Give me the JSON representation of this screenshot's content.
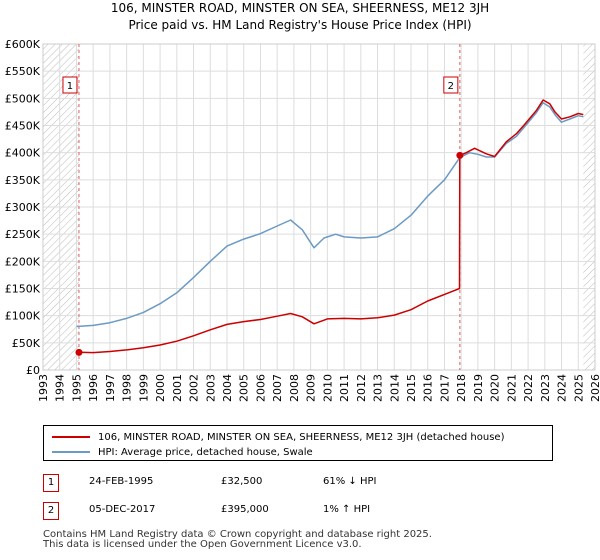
{
  "title_line1": "106, MINSTER ROAD, MINSTER ON SEA, SHEERNESS, ME12 3JH",
  "title_line2": "Price paid vs. HM Land Registry's House Price Index (HPI)",
  "chart_data": {
    "type": "line",
    "title": "106, MINSTER ROAD, MINSTER ON SEA, SHEERNESS, ME12 3JH - Price paid vs. HM Land Registry's House Price Index (HPI)",
    "xlabel": "",
    "ylabel": "",
    "xlim": [
      1993,
      2026
    ],
    "ylim": [
      0,
      600000
    ],
    "x_ticks": [
      1993,
      1994,
      1995,
      1996,
      1997,
      1998,
      1999,
      2000,
      2001,
      2002,
      2003,
      2004,
      2005,
      2006,
      2007,
      2008,
      2009,
      2010,
      2011,
      2012,
      2013,
      2014,
      2015,
      2016,
      2017,
      2018,
      2019,
      2020,
      2021,
      2022,
      2023,
      2024,
      2025,
      2026
    ],
    "y_ticks": [
      0,
      50000,
      100000,
      150000,
      200000,
      250000,
      300000,
      350000,
      400000,
      450000,
      500000,
      550000,
      600000
    ],
    "y_tick_labels": [
      "£0",
      "£50K",
      "£100K",
      "£150K",
      "£200K",
      "£250K",
      "£300K",
      "£350K",
      "£400K",
      "£450K",
      "£500K",
      "£550K",
      "£600K"
    ],
    "grid": true,
    "series": [
      {
        "name": "106, MINSTER ROAD, MINSTER ON SEA, SHEERNESS, ME12 3JH (detached house)",
        "color": "#cc0000",
        "points": [
          [
            1995.15,
            32500
          ],
          [
            1996,
            32000
          ],
          [
            1997,
            34000
          ],
          [
            1998,
            37000
          ],
          [
            1999,
            41000
          ],
          [
            2000,
            46000
          ],
          [
            2001,
            53000
          ],
          [
            2002,
            63000
          ],
          [
            2003,
            74000
          ],
          [
            2004,
            84000
          ],
          [
            2005,
            89000
          ],
          [
            2006,
            93000
          ],
          [
            2007,
            99000
          ],
          [
            2007.8,
            104000
          ],
          [
            2008.5,
            98000
          ],
          [
            2009.2,
            85000
          ],
          [
            2010,
            94000
          ],
          [
            2011,
            95000
          ],
          [
            2012,
            94000
          ],
          [
            2013,
            96000
          ],
          [
            2014,
            101000
          ],
          [
            2015,
            111000
          ],
          [
            2016,
            127000
          ],
          [
            2017.5,
            145000
          ],
          [
            2017.9,
            150000
          ],
          [
            2017.92,
            395000
          ],
          [
            2018.3,
            400000
          ],
          [
            2018.8,
            408000
          ],
          [
            2019.5,
            398000
          ],
          [
            2020,
            393000
          ],
          [
            2020.7,
            420000
          ],
          [
            2021.3,
            435000
          ],
          [
            2021.8,
            452000
          ],
          [
            2022.5,
            478000
          ],
          [
            2022.9,
            497000
          ],
          [
            2023.3,
            490000
          ],
          [
            2023.6,
            475000
          ],
          [
            2024,
            462000
          ],
          [
            2024.5,
            466000
          ],
          [
            2025,
            472000
          ],
          [
            2025.3,
            470000
          ]
        ]
      },
      {
        "name": "HPI: Average price, detached house, Swale",
        "color": "#6b9ac4",
        "points": [
          [
            1995,
            80000
          ],
          [
            1996,
            82000
          ],
          [
            1997,
            87000
          ],
          [
            1998,
            95000
          ],
          [
            1999,
            106000
          ],
          [
            2000,
            122000
          ],
          [
            2001,
            142000
          ],
          [
            2002,
            170000
          ],
          [
            2003,
            200000
          ],
          [
            2004,
            228000
          ],
          [
            2005,
            241000
          ],
          [
            2006,
            251000
          ],
          [
            2007,
            265000
          ],
          [
            2007.8,
            276000
          ],
          [
            2008.5,
            258000
          ],
          [
            2009.2,
            225000
          ],
          [
            2009.8,
            243000
          ],
          [
            2010.5,
            250000
          ],
          [
            2011,
            245000
          ],
          [
            2012,
            243000
          ],
          [
            2013,
            245000
          ],
          [
            2014,
            260000
          ],
          [
            2015,
            285000
          ],
          [
            2016,
            320000
          ],
          [
            2017,
            350000
          ],
          [
            2017.92,
            391000
          ],
          [
            2018.5,
            400000
          ],
          [
            2019,
            397000
          ],
          [
            2019.5,
            392000
          ],
          [
            2020,
            392000
          ],
          [
            2020.7,
            417000
          ],
          [
            2021.3,
            430000
          ],
          [
            2021.8,
            448000
          ],
          [
            2022.5,
            474000
          ],
          [
            2022.9,
            492000
          ],
          [
            2023.3,
            484000
          ],
          [
            2023.6,
            470000
          ],
          [
            2024,
            456000
          ],
          [
            2024.5,
            462000
          ],
          [
            2025,
            468000
          ],
          [
            2025.3,
            466000
          ]
        ]
      }
    ],
    "annotations": [
      {
        "label": "1",
        "x": 1995.15,
        "y": 32500
      },
      {
        "label": "2",
        "x": 2017.92,
        "y": 395000
      }
    ],
    "shaded_regions": [
      {
        "label": "pre-data hatch",
        "x0": 1993,
        "x1": 1995.15
      },
      {
        "label": "post-data hatch",
        "x0": 2025.3,
        "x1": 2026
      }
    ]
  },
  "legend": {
    "items": [
      {
        "label": "106, MINSTER ROAD, MINSTER ON SEA, SHEERNESS, ME12 3JH (detached house)",
        "color": "#cc0000"
      },
      {
        "label": "HPI: Average price, detached house, Swale",
        "color": "#6b9ac4"
      }
    ]
  },
  "sales": [
    {
      "num": "1",
      "date": "24-FEB-1995",
      "price": "£32,500",
      "hpi": "61% ↓ HPI"
    },
    {
      "num": "2",
      "date": "05-DEC-2017",
      "price": "£395,000",
      "hpi": "1% ↑ HPI"
    }
  ],
  "footer": {
    "line1": "Contains HM Land Registry data © Crown copyright and database right 2025.",
    "line2": "This data is licensed under the Open Government Licence v3.0."
  }
}
